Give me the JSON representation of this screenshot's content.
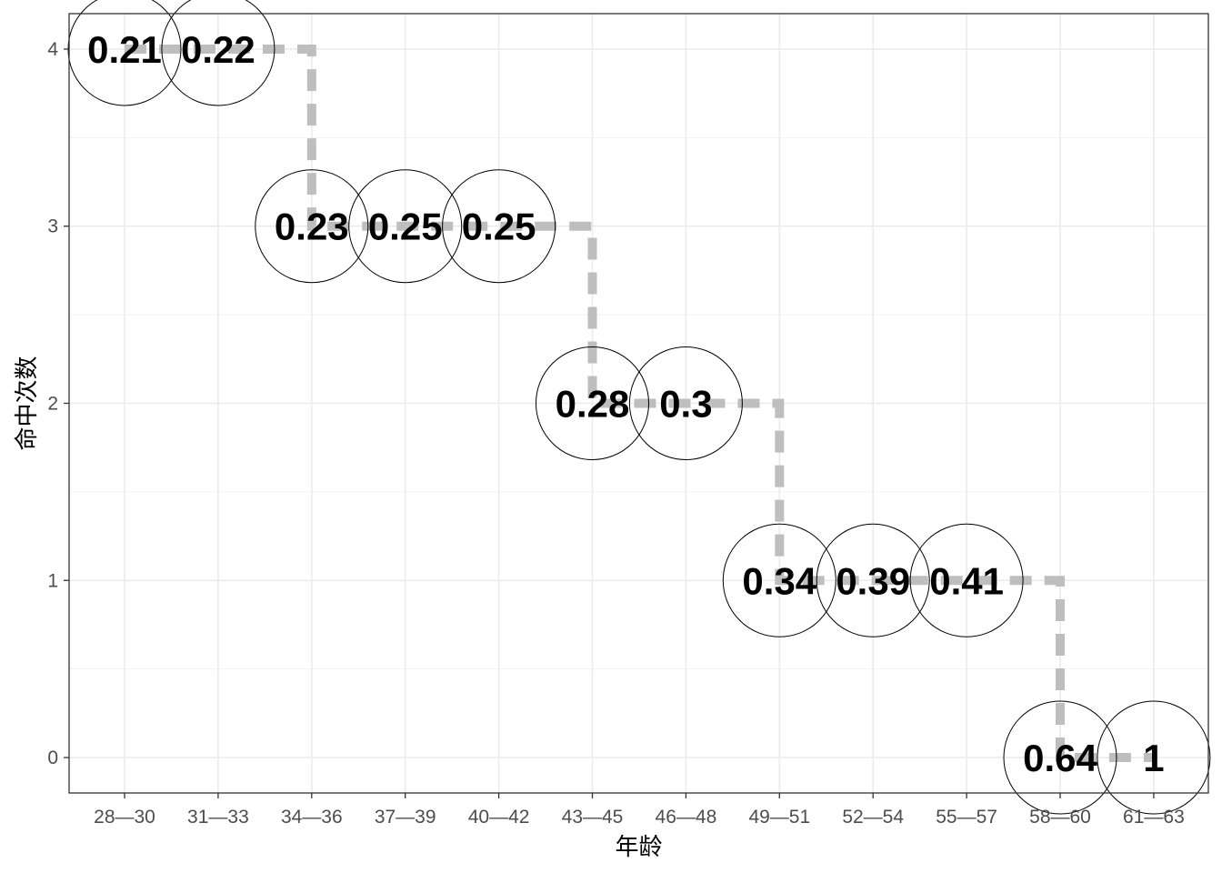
{
  "chart_data": {
    "type": "line",
    "xlabel": "年龄",
    "ylabel": "命中次数",
    "categories": [
      "28—30",
      "31—33",
      "34—36",
      "37—39",
      "40—42",
      "43—45",
      "46—48",
      "49—51",
      "52—54",
      "55—57",
      "58—60",
      "61—63"
    ],
    "y_ticks": [
      "0",
      "1",
      "2",
      "3",
      "4"
    ],
    "ylim": [
      -0.2,
      4.2
    ],
    "grid": true,
    "step_line": {
      "style": "dashed",
      "color": "#bebebe"
    },
    "points": [
      {
        "x": "28—30",
        "y": 4,
        "label": "0.21"
      },
      {
        "x": "31—33",
        "y": 4,
        "label": "0.22"
      },
      {
        "x": "34—36",
        "y": 3,
        "label": "0.23"
      },
      {
        "x": "37—39",
        "y": 3,
        "label": "0.25"
      },
      {
        "x": "40—42",
        "y": 3,
        "label": "0.25"
      },
      {
        "x": "43—45",
        "y": 2,
        "label": "0.28"
      },
      {
        "x": "46—48",
        "y": 2,
        "label": "0.3"
      },
      {
        "x": "49—51",
        "y": 1,
        "label": "0.34"
      },
      {
        "x": "52—54",
        "y": 1,
        "label": "0.39"
      },
      {
        "x": "55—57",
        "y": 1,
        "label": "0.41"
      },
      {
        "x": "58—60",
        "y": 0,
        "label": "0.64"
      },
      {
        "x": "61—63",
        "y": 0,
        "label": "1"
      }
    ]
  }
}
